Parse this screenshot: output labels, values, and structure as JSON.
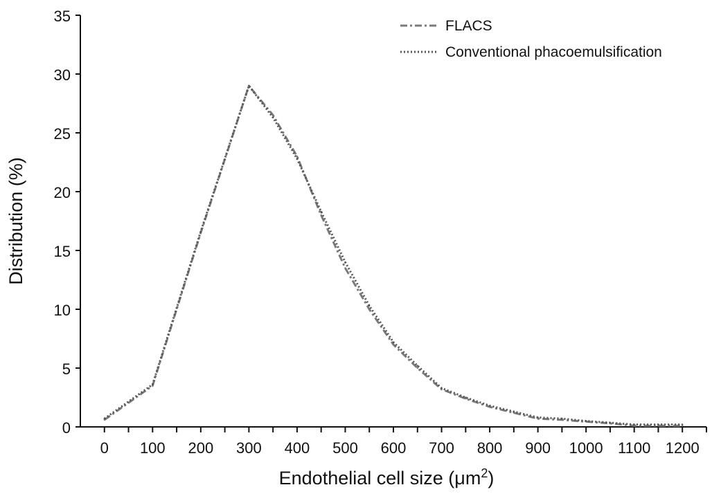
{
  "chart_data": {
    "type": "line",
    "xlabel": "Endothelial cell size (μm²)",
    "xlabel_base": "Endothelial cell size (μm",
    "xlabel_sup": "2",
    "xlabel_close": ")",
    "ylabel": "Distribution (%)",
    "xlim": [
      -50,
      1250
    ],
    "ylim": [
      0,
      35
    ],
    "x_ticks": [
      0,
      100,
      200,
      300,
      400,
      500,
      600,
      700,
      800,
      900,
      1000,
      1100,
      1200
    ],
    "y_ticks": [
      0,
      5,
      10,
      15,
      20,
      25,
      30,
      35
    ],
    "grid": false,
    "legend_position": "top-right",
    "series": [
      {
        "name": "FLACS",
        "style": "dash-dot",
        "color": "#7a7a7a",
        "x": [
          0,
          100,
          200,
          300,
          350,
          400,
          450,
          500,
          550,
          600,
          650,
          700,
          750,
          800,
          850,
          900,
          950,
          1000,
          1050,
          1100,
          1150,
          1200
        ],
        "y": [
          0.6,
          3.5,
          16.5,
          29.0,
          26.5,
          23.0,
          18.0,
          13.5,
          10.0,
          7.0,
          5.0,
          3.2,
          2.4,
          1.7,
          1.2,
          0.7,
          0.6,
          0.45,
          0.3,
          0.1,
          0.1,
          0.1
        ]
      },
      {
        "name": "Conventional phacoemulsification",
        "style": "dotted",
        "color": "#555555",
        "x": [
          0,
          100,
          200,
          300,
          350,
          400,
          450,
          500,
          550,
          600,
          650,
          700,
          750,
          800,
          850,
          900,
          950,
          1000,
          1050,
          1100,
          1150,
          1200
        ],
        "y": [
          0.7,
          3.6,
          16.6,
          29.0,
          26.3,
          22.8,
          18.3,
          14.0,
          10.3,
          7.2,
          5.2,
          3.3,
          2.5,
          1.8,
          1.3,
          0.8,
          0.7,
          0.5,
          0.35,
          0.2,
          0.2,
          0.2
        ]
      }
    ]
  }
}
